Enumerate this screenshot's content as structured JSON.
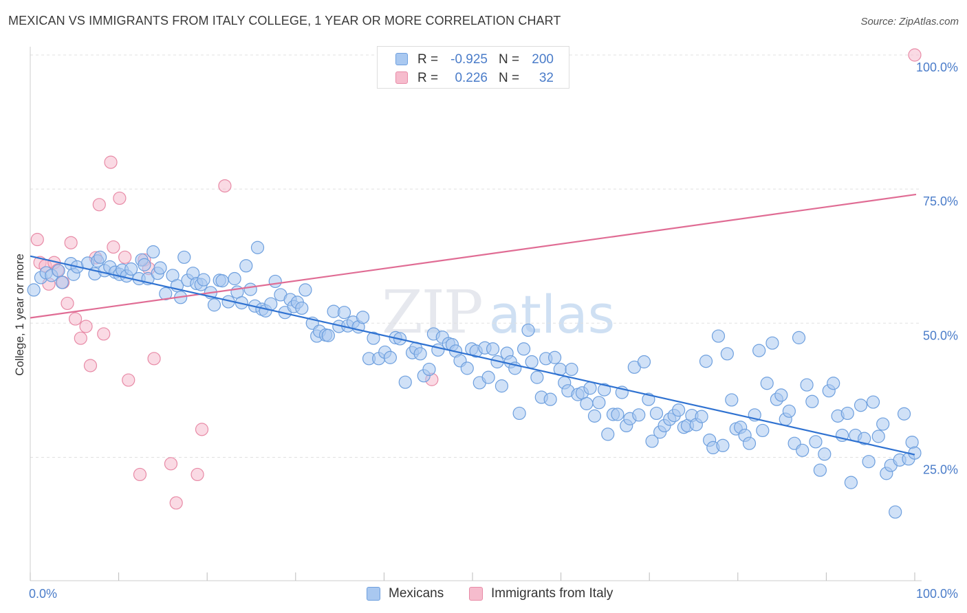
{
  "header": {
    "title": "MEXICAN VS IMMIGRANTS FROM ITALY COLLEGE, 1 YEAR OR MORE CORRELATION CHART",
    "source": "Source: ZipAtlas.com"
  },
  "watermark": {
    "zip": "ZIP",
    "atlas": "atlas"
  },
  "legend": {
    "rows": [
      {
        "r_key": "R =",
        "r_value": "-0.925",
        "n_key": "N =",
        "n_value": "200"
      },
      {
        "r_key": "R =",
        "r_value": "0.226",
        "n_key": "N =",
        "n_value": "32"
      }
    ]
  },
  "colors": {
    "blue_fill": "#a9c8f0",
    "blue_stroke": "#6d9fde",
    "blue_line": "#2f72d1",
    "pink_fill": "#f6bccd",
    "pink_stroke": "#e88aa6",
    "pink_line": "#e06c94",
    "grid": "#e0e0e0",
    "axis_text": "#4a7cc9"
  },
  "chart_data": {
    "type": "scatter",
    "title": "MEXICAN VS IMMIGRANTS FROM ITALY COLLEGE, 1 YEAR OR MORE CORRELATION CHART",
    "xlabel": "",
    "ylabel": "College, 1 year or more",
    "xlim": [
      0,
      100
    ],
    "ylim": [
      2,
      100
    ],
    "x_tick_labels": [
      "0.0%",
      "100.0%"
    ],
    "y_ticks": [
      25,
      50,
      75,
      100
    ],
    "y_tick_labels": [
      "25.0%",
      "50.0%",
      "75.0%",
      "100.0%"
    ],
    "grid": true,
    "legend_position": "bottom-center",
    "series": [
      {
        "name": "Mexicans",
        "r": -0.925,
        "n": 200,
        "trend": {
          "x": [
            0,
            100
          ],
          "y": [
            62.5,
            25.5
          ]
        },
        "points": [
          [
            0.4,
            56.2
          ],
          [
            1.2,
            58.5
          ],
          [
            1.8,
            59.4
          ],
          [
            2.4,
            58.9
          ],
          [
            3.2,
            59.8
          ],
          [
            3.6,
            57.6
          ],
          [
            4.6,
            61.1
          ],
          [
            4.9,
            59.1
          ],
          [
            5.3,
            60.5
          ],
          [
            6.5,
            61.2
          ],
          [
            7.3,
            59.2
          ],
          [
            7.6,
            61.6
          ],
          [
            7.9,
            62.3
          ],
          [
            8.4,
            59.8
          ],
          [
            9.0,
            60.5
          ],
          [
            9.6,
            59.5
          ],
          [
            10.1,
            59.1
          ],
          [
            10.4,
            59.9
          ],
          [
            10.9,
            58.8
          ],
          [
            11.4,
            60.1
          ],
          [
            12.3,
            58.3
          ],
          [
            12.6,
            61.8
          ],
          [
            12.9,
            60.9
          ],
          [
            13.3,
            58.3
          ],
          [
            13.9,
            63.3
          ],
          [
            14.4,
            59.3
          ],
          [
            14.7,
            60.3
          ],
          [
            15.3,
            55.5
          ],
          [
            16.1,
            58.9
          ],
          [
            16.6,
            57.0
          ],
          [
            17.0,
            54.8
          ],
          [
            17.4,
            62.3
          ],
          [
            17.8,
            58.0
          ],
          [
            18.4,
            59.3
          ],
          [
            18.8,
            57.4
          ],
          [
            19.3,
            57.2
          ],
          [
            19.6,
            58.1
          ],
          [
            20.4,
            55.7
          ],
          [
            20.8,
            53.4
          ],
          [
            21.4,
            58.0
          ],
          [
            21.7,
            57.9
          ],
          [
            22.4,
            54.0
          ],
          [
            23.1,
            58.3
          ],
          [
            23.4,
            55.8
          ],
          [
            23.9,
            53.8
          ],
          [
            24.4,
            60.7
          ],
          [
            24.9,
            56.3
          ],
          [
            25.4,
            53.2
          ],
          [
            25.7,
            64.1
          ],
          [
            26.2,
            52.6
          ],
          [
            26.6,
            52.3
          ],
          [
            27.2,
            53.6
          ],
          [
            27.7,
            57.8
          ],
          [
            28.3,
            55.3
          ],
          [
            28.8,
            52.0
          ],
          [
            29.4,
            54.4
          ],
          [
            29.8,
            53.1
          ],
          [
            30.2,
            53.9
          ],
          [
            30.7,
            52.8
          ],
          [
            31.1,
            56.2
          ],
          [
            31.9,
            50.0
          ],
          [
            32.4,
            47.6
          ],
          [
            32.7,
            48.5
          ],
          [
            33.4,
            47.8
          ],
          [
            33.7,
            47.7
          ],
          [
            34.3,
            52.2
          ],
          [
            34.9,
            49.4
          ],
          [
            35.5,
            52.0
          ],
          [
            35.9,
            49.5
          ],
          [
            36.5,
            50.2
          ],
          [
            37.1,
            49.3
          ],
          [
            37.6,
            51.1
          ],
          [
            38.3,
            43.4
          ],
          [
            38.8,
            47.2
          ],
          [
            39.4,
            43.4
          ],
          [
            40.1,
            44.6
          ],
          [
            40.7,
            43.6
          ],
          [
            41.3,
            47.3
          ],
          [
            41.8,
            47.1
          ],
          [
            42.4,
            39.0
          ],
          [
            43.2,
            44.5
          ],
          [
            43.6,
            45.3
          ],
          [
            44.1,
            44.3
          ],
          [
            44.5,
            40.2
          ],
          [
            45.1,
            41.4
          ],
          [
            45.6,
            48.0
          ],
          [
            46.1,
            45.0
          ],
          [
            46.6,
            47.4
          ],
          [
            47.3,
            46.2
          ],
          [
            47.7,
            46.0
          ],
          [
            48.1,
            44.8
          ],
          [
            48.6,
            43.0
          ],
          [
            49.4,
            41.6
          ],
          [
            49.9,
            45.2
          ],
          [
            50.4,
            44.8
          ],
          [
            50.8,
            38.9
          ],
          [
            51.4,
            45.4
          ],
          [
            51.8,
            39.9
          ],
          [
            52.3,
            45.2
          ],
          [
            52.8,
            42.8
          ],
          [
            53.3,
            38.3
          ],
          [
            53.9,
            44.4
          ],
          [
            54.3,
            42.8
          ],
          [
            54.8,
            41.6
          ],
          [
            55.3,
            33.2
          ],
          [
            55.8,
            45.2
          ],
          [
            56.3,
            48.7
          ],
          [
            56.7,
            42.8
          ],
          [
            57.3,
            39.9
          ],
          [
            57.8,
            36.2
          ],
          [
            58.3,
            43.4
          ],
          [
            58.8,
            35.8
          ],
          [
            59.3,
            43.6
          ],
          [
            59.9,
            41.4
          ],
          [
            60.4,
            38.9
          ],
          [
            60.8,
            37.4
          ],
          [
            61.2,
            41.4
          ],
          [
            61.9,
            36.7
          ],
          [
            62.4,
            37.0
          ],
          [
            62.9,
            35.0
          ],
          [
            63.3,
            37.9
          ],
          [
            63.8,
            32.7
          ],
          [
            64.3,
            35.2
          ],
          [
            64.9,
            37.6
          ],
          [
            65.3,
            29.3
          ],
          [
            65.9,
            33.0
          ],
          [
            66.4,
            33.0
          ],
          [
            66.9,
            37.1
          ],
          [
            67.4,
            30.9
          ],
          [
            67.8,
            32.2
          ],
          [
            68.3,
            41.8
          ],
          [
            68.8,
            32.9
          ],
          [
            69.4,
            42.8
          ],
          [
            69.9,
            35.8
          ],
          [
            70.3,
            28.0
          ],
          [
            70.8,
            33.2
          ],
          [
            71.2,
            29.7
          ],
          [
            71.7,
            30.9
          ],
          [
            72.3,
            32.1
          ],
          [
            72.8,
            32.8
          ],
          [
            73.3,
            33.8
          ],
          [
            73.9,
            30.6
          ],
          [
            74.3,
            30.9
          ],
          [
            74.8,
            32.8
          ],
          [
            75.3,
            31.1
          ],
          [
            75.9,
            32.6
          ],
          [
            76.4,
            42.9
          ],
          [
            76.8,
            28.2
          ],
          [
            77.2,
            26.8
          ],
          [
            77.8,
            47.6
          ],
          [
            78.3,
            27.2
          ],
          [
            78.8,
            44.3
          ],
          [
            79.3,
            35.7
          ],
          [
            79.8,
            30.3
          ],
          [
            80.3,
            30.6
          ],
          [
            80.8,
            29.1
          ],
          [
            81.3,
            27.6
          ],
          [
            81.9,
            32.9
          ],
          [
            82.4,
            44.9
          ],
          [
            82.8,
            30.0
          ],
          [
            83.3,
            38.8
          ],
          [
            83.9,
            46.3
          ],
          [
            84.4,
            35.8
          ],
          [
            84.9,
            36.6
          ],
          [
            85.4,
            32.1
          ],
          [
            85.8,
            33.6
          ],
          [
            86.4,
            27.6
          ],
          [
            86.9,
            47.3
          ],
          [
            87.3,
            26.3
          ],
          [
            87.8,
            38.5
          ],
          [
            88.4,
            35.4
          ],
          [
            88.8,
            27.9
          ],
          [
            89.3,
            22.6
          ],
          [
            89.8,
            25.6
          ],
          [
            90.3,
            37.4
          ],
          [
            90.8,
            38.8
          ],
          [
            91.3,
            32.7
          ],
          [
            91.8,
            29.1
          ],
          [
            92.4,
            33.2
          ],
          [
            92.8,
            20.3
          ],
          [
            93.3,
            29.1
          ],
          [
            93.9,
            34.7
          ],
          [
            94.3,
            28.5
          ],
          [
            94.8,
            24.2
          ],
          [
            95.3,
            35.3
          ],
          [
            95.9,
            28.9
          ],
          [
            96.4,
            31.2
          ],
          [
            96.8,
            22.0
          ],
          [
            97.3,
            23.5
          ],
          [
            97.8,
            14.8
          ],
          [
            98.3,
            24.5
          ],
          [
            98.8,
            33.1
          ],
          [
            99.3,
            24.7
          ],
          [
            99.7,
            27.8
          ],
          [
            100.0,
            25.8
          ]
        ]
      },
      {
        "name": "Immigrants from Italy",
        "r": 0.226,
        "n": 32,
        "trend": {
          "x": [
            0,
            100
          ],
          "y": [
            51.0,
            74.0
          ]
        },
        "points": [
          [
            0.8,
            65.6
          ],
          [
            1.1,
            61.3
          ],
          [
            1.7,
            60.7
          ],
          [
            2.1,
            57.3
          ],
          [
            2.7,
            61.3
          ],
          [
            3.1,
            59.9
          ],
          [
            3.7,
            57.6
          ],
          [
            4.2,
            53.7
          ],
          [
            4.6,
            65.0
          ],
          [
            5.1,
            50.8
          ],
          [
            5.7,
            47.2
          ],
          [
            6.3,
            49.4
          ],
          [
            6.8,
            42.1
          ],
          [
            7.4,
            62.2
          ],
          [
            7.8,
            72.1
          ],
          [
            8.3,
            48.0
          ],
          [
            9.1,
            80.0
          ],
          [
            9.4,
            64.2
          ],
          [
            10.1,
            73.3
          ],
          [
            10.7,
            62.3
          ],
          [
            11.1,
            39.4
          ],
          [
            12.4,
            21.8
          ],
          [
            12.9,
            61.8
          ],
          [
            13.4,
            60.2
          ],
          [
            14.0,
            43.4
          ],
          [
            15.9,
            23.8
          ],
          [
            16.5,
            16.5
          ],
          [
            18.9,
            21.8
          ],
          [
            19.4,
            30.2
          ],
          [
            22.0,
            75.6
          ],
          [
            45.4,
            39.5
          ],
          [
            100.0,
            100.0
          ]
        ]
      }
    ]
  },
  "bottom_legend": {
    "items": [
      {
        "label": "Mexicans"
      },
      {
        "label": "Immigrants from Italy"
      }
    ]
  }
}
